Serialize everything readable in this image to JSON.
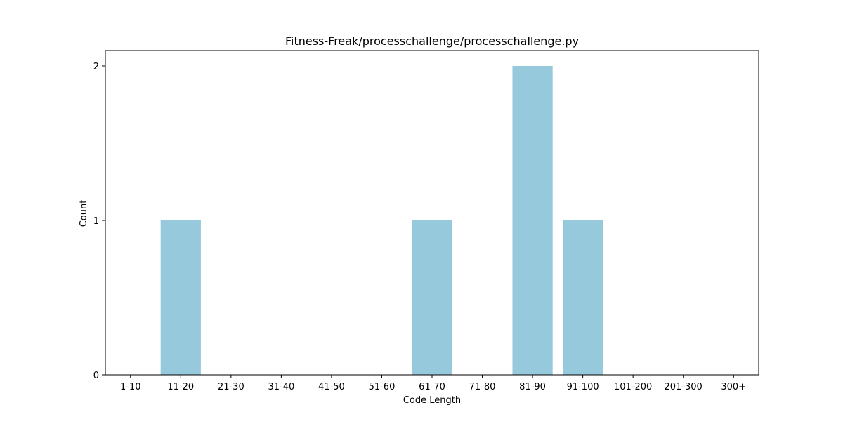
{
  "chart_data": {
    "type": "bar",
    "title": "Fitness-Freak/processchallenge/processchallenge.py",
    "xlabel": "Code Length",
    "ylabel": "Count",
    "categories": [
      "1-10",
      "11-20",
      "21-30",
      "31-40",
      "41-50",
      "51-60",
      "61-70",
      "71-80",
      "81-90",
      "91-100",
      "101-200",
      "201-300",
      "300+"
    ],
    "values": [
      0,
      1,
      0,
      0,
      0,
      0,
      1,
      0,
      2,
      1,
      0,
      0,
      0
    ],
    "ylim": [
      0,
      2.1
    ],
    "yticks": [
      0,
      1,
      2
    ],
    "grid": false,
    "bar_color": "#96c9dc"
  }
}
